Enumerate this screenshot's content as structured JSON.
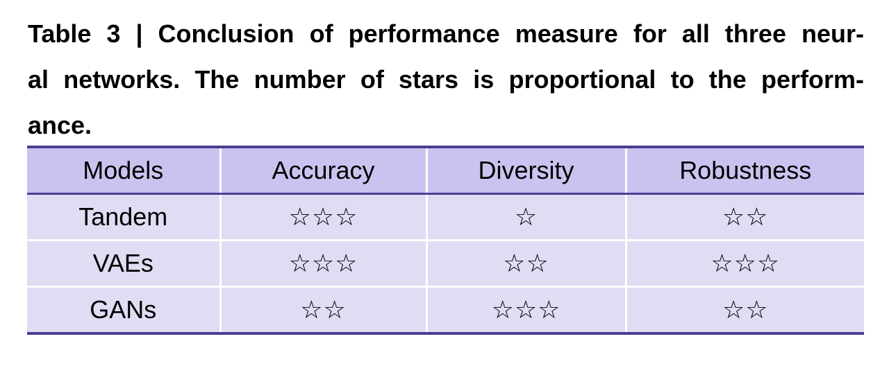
{
  "caption": {
    "lines": [
      "Table 3 | Conclusion of performance measure for all three neur-",
      "al networks. The number of stars is proportional to the perform-",
      "ance."
    ]
  },
  "table": {
    "headers": [
      "Models",
      "Accuracy",
      "Diversity",
      "Robustness"
    ],
    "rows": [
      {
        "model": "Tandem",
        "accuracy": 3,
        "diversity": 1,
        "robustness": 2
      },
      {
        "model": "VAEs",
        "accuracy": 3,
        "diversity": 2,
        "robustness": 3
      },
      {
        "model": "GANs",
        "accuracy": 2,
        "diversity": 3,
        "robustness": 2
      }
    ],
    "star_glyph": "☆",
    "colors": {
      "header_bg": "#cbc3ef",
      "row_bg": "#e0dcf3",
      "rule": "#4a3f92"
    }
  }
}
